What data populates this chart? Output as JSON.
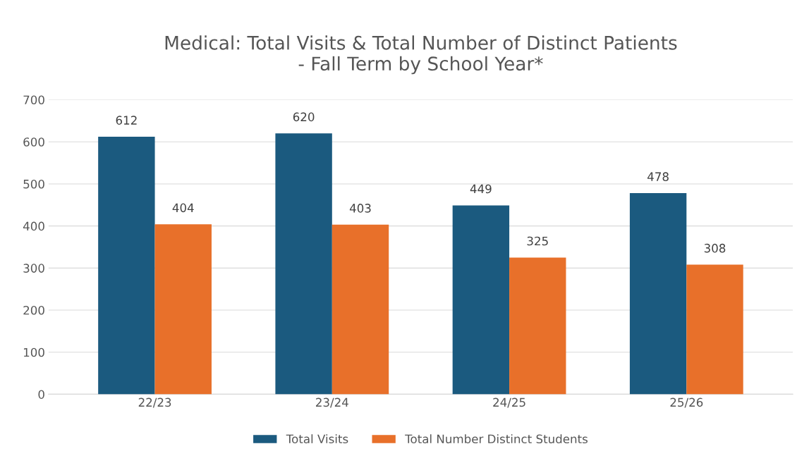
{
  "chart_data": {
    "type": "bar",
    "title": "Medical: Total Visits & Total Number of Distinct Patients\n- Fall Term by School Year*",
    "categories": [
      "22/23",
      "23/24",
      "24/25",
      "25/26"
    ],
    "series": [
      {
        "name": "Total Visits",
        "color": "#1b5a7f",
        "values": [
          612,
          620,
          449,
          478
        ]
      },
      {
        "name": "Total Number Distinct Students",
        "color": "#e8702a",
        "values": [
          404,
          403,
          325,
          308
        ]
      }
    ],
    "ylim": [
      0,
      700
    ],
    "yticks": [
      0,
      100,
      200,
      300,
      400,
      500,
      600,
      700
    ],
    "grid": "y",
    "legend": "bottom",
    "data_labels": true
  }
}
